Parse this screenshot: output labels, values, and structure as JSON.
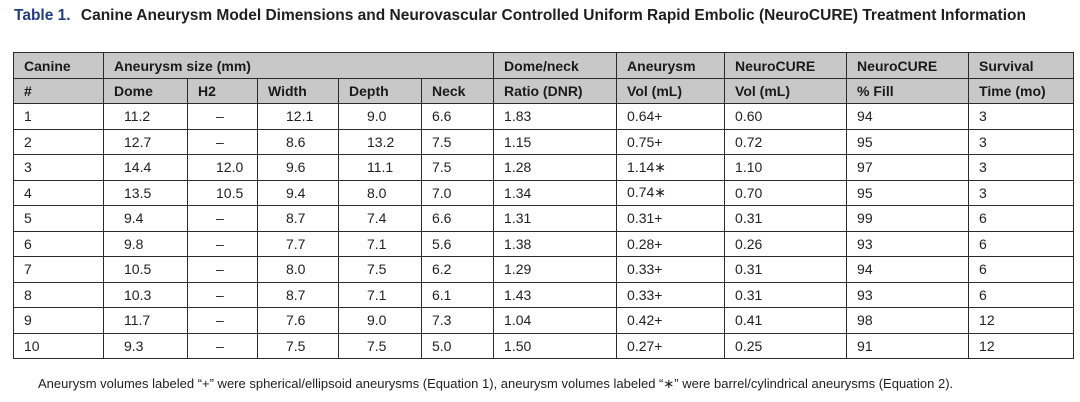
{
  "caption": {
    "label": "Table 1.",
    "title": "Canine Aneurysm Model Dimensions and Neurovascular Controlled Uniform Rapid Embolic (NeuroCURE) Treatment Information"
  },
  "table": {
    "header_row1": [
      "Canine",
      "Aneurysm size (mm)",
      "Dome/neck",
      "Aneurysm",
      "NeuroCURE",
      "NeuroCURE",
      "Survival"
    ],
    "header_row2": [
      "#",
      "Dome",
      "H2",
      "Width",
      "Depth",
      "Neck",
      "Ratio (DNR)",
      "Vol (mL)",
      "Vol (mL)",
      "% Fill",
      "Time (mo)"
    ],
    "rows": [
      [
        "1",
        "11.2",
        "–",
        "12.1",
        "9.0",
        "6.6",
        "1.83",
        "0.64+",
        "0.60",
        "94",
        "3"
      ],
      [
        "2",
        "12.7",
        "–",
        "8.6",
        "13.2",
        "7.5",
        "1.15",
        "0.75+",
        "0.72",
        "95",
        "3"
      ],
      [
        "3",
        "14.4",
        "12.0",
        "9.6",
        "11.1",
        "7.5",
        "1.28",
        "1.14∗",
        "1.10",
        "97",
        "3"
      ],
      [
        "4",
        "13.5",
        "10.5",
        "9.4",
        "8.0",
        "7.0",
        "1.34",
        "0.74∗",
        "0.70",
        "95",
        "3"
      ],
      [
        "5",
        "9.4",
        "–",
        "8.7",
        "7.4",
        "6.6",
        "1.31",
        "0.31+",
        "0.31",
        "99",
        "6"
      ],
      [
        "6",
        "9.8",
        "–",
        "7.7",
        "7.1",
        "5.6",
        "1.38",
        "0.28+",
        "0.26",
        "93",
        "6"
      ],
      [
        "7",
        "10.5",
        "–",
        "8.0",
        "7.5",
        "6.2",
        "1.29",
        "0.33+",
        "0.31",
        "94",
        "6"
      ],
      [
        "8",
        "10.3",
        "–",
        "8.7",
        "7.1",
        "6.1",
        "1.43",
        "0.33+",
        "0.31",
        "93",
        "6"
      ],
      [
        "9",
        "11.7",
        "–",
        "7.6",
        "9.0",
        "7.3",
        "1.04",
        "0.42+",
        "0.41",
        "98",
        "12"
      ],
      [
        "10",
        "9.3",
        "–",
        "7.5",
        "7.5",
        "5.0",
        "1.50",
        "0.27+",
        "0.25",
        "91",
        "12"
      ]
    ]
  },
  "footnote": "Aneurysm volumes labeled “+” were spherical/ellipsoid aneurysms (Equation 1), aneurysm volumes labeled “∗” were barrel/cylindrical aneurysms (Equation 2).",
  "colors": {
    "header_bg": "#c8c8c8",
    "label_blue": "#1f3d8a",
    "border": "#2b2b2b"
  }
}
